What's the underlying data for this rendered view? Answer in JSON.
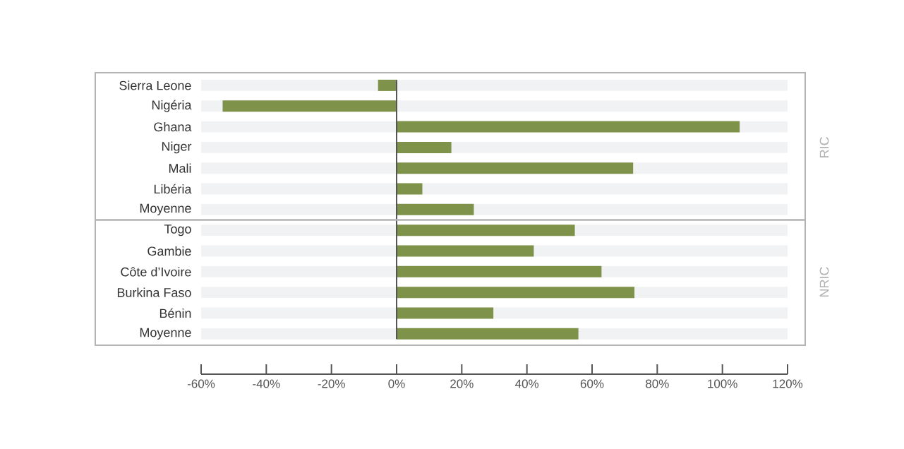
{
  "chart_data": {
    "type": "bar",
    "orientation": "horizontal",
    "categories": [
      "Sierra Leone",
      "Nigéria",
      "Ghana",
      "Niger",
      "Mali",
      "Libéria",
      "Moyenne",
      "Togo",
      "Gambie",
      "Côte d’Ivoire",
      "Burkina Faso",
      "Bénin",
      "Moyenne"
    ],
    "values": [
      -5.7,
      -53.4,
      105.3,
      16.8,
      72.6,
      7.9,
      23.7,
      54.7,
      42.1,
      62.9,
      73,
      29.7,
      55.8
    ],
    "color": "#7e9249",
    "xlim": [
      -60,
      120
    ],
    "xticks": [
      {
        "value": -60,
        "label": "-60%"
      },
      {
        "value": -40,
        "label": "-40%"
      },
      {
        "value": -20,
        "label": "-20%"
      },
      {
        "value": 0,
        "label": "0%"
      },
      {
        "value": 20,
        "label": "20%"
      },
      {
        "value": 40,
        "label": "40%"
      },
      {
        "value": 60,
        "label": "60%"
      },
      {
        "value": 80,
        "label": "80%"
      },
      {
        "value": 100,
        "label": "100%"
      },
      {
        "value": 120,
        "label": "120%"
      }
    ],
    "annotations": [
      "RIC",
      "NRIC"
    ]
  }
}
